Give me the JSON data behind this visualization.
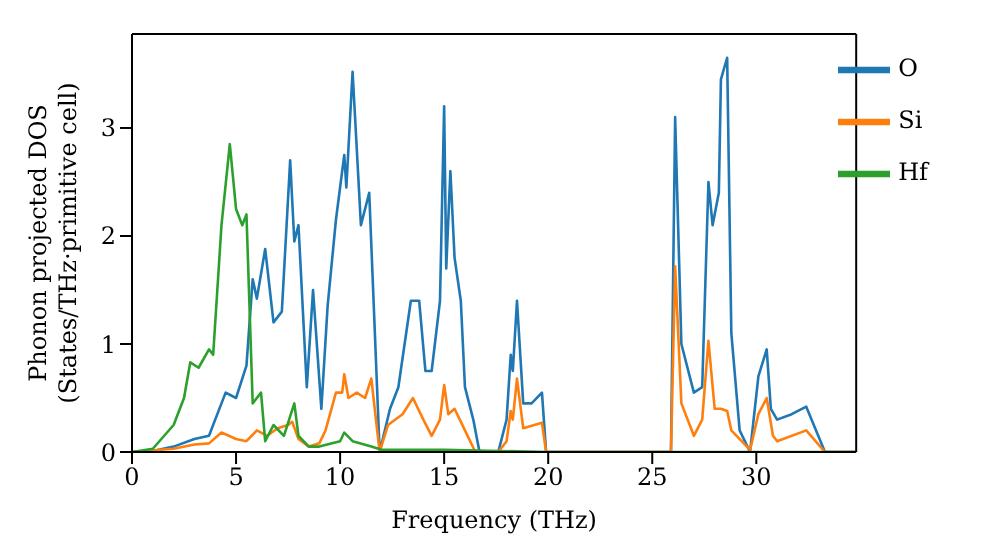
{
  "chart_data": {
    "type": "line",
    "xlabel": "Frequency (THz)",
    "ylabel": "Phonon projected DOS\n(States/THz·primitive cell)",
    "xlim": [
      0,
      34.8
    ],
    "ylim": [
      0,
      3.87
    ],
    "xticks": [
      0,
      5,
      10,
      15,
      20,
      25,
      30
    ],
    "yticks": [
      0,
      1,
      2,
      3
    ],
    "legend": "top right",
    "marker": "none",
    "line_style": "solid",
    "grid": false,
    "series": [
      {
        "name": "O",
        "color": "#1f77b4",
        "x": [
          0,
          1,
          2,
          3,
          3.7,
          4.3,
          4.5,
          5,
          5.5,
          5.8,
          6.0,
          6.4,
          6.8,
          7.2,
          7.6,
          7.8,
          8.0,
          8.4,
          8.7,
          9.1,
          9.4,
          9.8,
          10.2,
          10.3,
          10.6,
          11.0,
          11.4,
          11.9,
          12.4,
          12.8,
          13.4,
          13.8,
          14.1,
          14.4,
          14.8,
          15.0,
          15.1,
          15.3,
          15.5,
          15.8,
          16.0,
          16.4,
          16.7,
          17.6,
          18.0,
          18.2,
          18.3,
          18.5,
          18.8,
          19.2,
          19.7,
          19.9,
          25.9,
          26.1,
          26.4,
          27.0,
          27.4,
          27.7,
          27.9,
          28.2,
          28.3,
          28.6,
          28.8,
          29.2,
          29.7,
          30.1,
          30.5,
          30.7,
          31.0,
          31.7,
          32.4,
          33.3,
          34.8
        ],
        "values": [
          0,
          0.01,
          0.05,
          0.12,
          0.15,
          0.45,
          0.55,
          0.5,
          0.8,
          1.6,
          1.42,
          1.88,
          1.2,
          1.3,
          2.7,
          1.95,
          2.1,
          0.6,
          1.5,
          0.4,
          1.35,
          2.15,
          2.75,
          2.45,
          3.52,
          2.1,
          2.4,
          0.0,
          0.4,
          0.6,
          1.4,
          1.4,
          0.75,
          0.75,
          1.4,
          3.2,
          1.7,
          2.6,
          1.8,
          1.4,
          0.6,
          0.3,
          0,
          0,
          0.3,
          0.9,
          0.75,
          1.4,
          0.45,
          0.45,
          0.55,
          0,
          0,
          3.1,
          1.0,
          0.55,
          0.6,
          2.5,
          2.1,
          2.4,
          3.45,
          3.65,
          1.1,
          0.2,
          0,
          0.7,
          0.95,
          0.4,
          0.3,
          0.35,
          0.42,
          0,
          0
        ]
      },
      {
        "name": "Si",
        "color": "#ff7f0e",
        "x": [
          0,
          2,
          3,
          3.7,
          4.3,
          5,
          5.5,
          6,
          6.5,
          7,
          7.5,
          7.7,
          8,
          8.5,
          9,
          9.3,
          9.8,
          10.1,
          10.2,
          10.4,
          10.8,
          11.2,
          11.5,
          11.9,
          12.3,
          13,
          13.5,
          14,
          14.4,
          14.8,
          15.0,
          15.2,
          15.5,
          16,
          16.5,
          17.6,
          18,
          18.2,
          18.3,
          18.5,
          18.8,
          19.7,
          19.9,
          25.9,
          26.1,
          26.4,
          27,
          27.4,
          27.7,
          28,
          28.3,
          28.6,
          28.8,
          29.7,
          30.1,
          30.5,
          30.8,
          31,
          32.4,
          33.3,
          34.8
        ],
        "values": [
          0,
          0.03,
          0.07,
          0.08,
          0.18,
          0.12,
          0.1,
          0.2,
          0.15,
          0.22,
          0.25,
          0.28,
          0.12,
          0.05,
          0.08,
          0.2,
          0.55,
          0.55,
          0.72,
          0.5,
          0.55,
          0.5,
          0.68,
          0,
          0.25,
          0.35,
          0.5,
          0.3,
          0.15,
          0.3,
          0.62,
          0.35,
          0.4,
          0.2,
          0,
          0,
          0.1,
          0.38,
          0.3,
          0.68,
          0.22,
          0.27,
          0,
          0,
          1.72,
          0.45,
          0.15,
          0.3,
          1.03,
          0.4,
          0.4,
          0.38,
          0.2,
          0.02,
          0.35,
          0.5,
          0.15,
          0.1,
          0.2,
          0,
          0
        ]
      },
      {
        "name": "Hf",
        "color": "#2ca02c",
        "x": [
          0,
          1,
          2,
          2.5,
          2.8,
          3.2,
          3.7,
          3.9,
          4.3,
          4.7,
          5,
          5.3,
          5.5,
          5.8,
          6.2,
          6.4,
          6.8,
          7.3,
          7.8,
          8,
          8.5,
          9,
          10,
          10.2,
          10.6,
          11.5,
          12,
          15,
          20,
          34.8
        ],
        "values": [
          0,
          0.03,
          0.25,
          0.5,
          0.83,
          0.78,
          0.95,
          0.9,
          2.1,
          2.85,
          2.25,
          2.1,
          2.2,
          0.45,
          0.55,
          0.1,
          0.25,
          0.15,
          0.45,
          0.15,
          0.05,
          0.05,
          0.1,
          0.18,
          0.1,
          0.05,
          0.02,
          0.02,
          0,
          0
        ]
      }
    ]
  }
}
